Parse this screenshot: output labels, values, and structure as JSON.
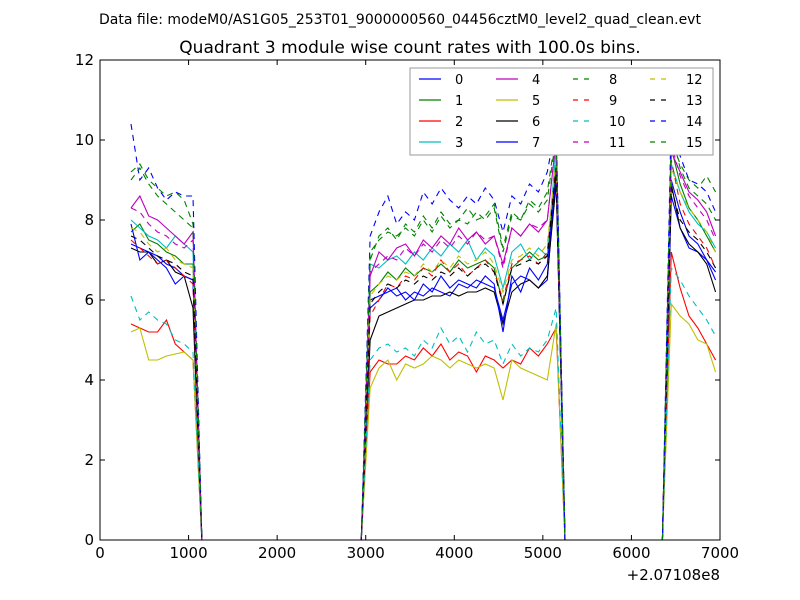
{
  "chart_data": {
    "type": "line",
    "suptitle": "Data file: modeM0/AS1G05_253T01_9000000560_04456cztM0_level2_quad_clean.evt",
    "title": "Quadrant 3 module wise count rates with 100.0s bins.",
    "xlabel": "",
    "ylabel": "",
    "offset_label": "+2.07108e8",
    "xlim": [
      0,
      7000
    ],
    "ylim": [
      0,
      12
    ],
    "xticks": [
      0,
      1000,
      2000,
      3000,
      4000,
      5000,
      6000,
      7000
    ],
    "yticks": [
      0,
      2,
      4,
      6,
      8,
      10,
      12
    ],
    "x": [
      350,
      450,
      550,
      650,
      750,
      850,
      950,
      1050,
      1150,
      1250,
      1350,
      1450,
      1550,
      1650,
      1750,
      1850,
      1950,
      2050,
      2150,
      2250,
      2350,
      2450,
      2550,
      2650,
      2750,
      2850,
      2950,
      3050,
      3150,
      3250,
      3350,
      3450,
      3550,
      3650,
      3750,
      3850,
      3950,
      4050,
      4150,
      4250,
      4350,
      4450,
      4550,
      4650,
      4750,
      4850,
      4950,
      5050,
      5150,
      5250,
      5350,
      5450,
      5550,
      5650,
      5750,
      5850,
      5950,
      6050,
      6150,
      6250,
      6350,
      6450,
      6550,
      6650,
      6750,
      6850,
      6950
    ],
    "active_segments": [
      [
        0,
        8
      ],
      [
        27,
        49
      ],
      [
        61,
        66
      ]
    ],
    "legend": {
      "location": "top-right",
      "columns": 4
    },
    "series": [
      {
        "name": "0",
        "color": "#0000ff",
        "style": "solid",
        "s1": [
          7.4,
          7.3,
          7.2,
          7.1,
          6.9,
          6.8,
          6.6,
          6.5
        ],
        "s2": [
          6.0,
          6.1,
          6.2,
          6.3,
          6.0,
          6.2,
          6.1,
          6.3,
          6.2,
          6.1,
          6.4,
          6.3,
          6.5,
          6.4,
          6.3,
          5.5,
          6.4,
          6.6,
          6.5,
          6.3,
          6.5,
          9.2
        ],
        "s3": [
          8.6,
          7.8,
          7.3,
          7.2,
          7.0,
          6.5
        ]
      },
      {
        "name": "1",
        "color": "#008000",
        "style": "solid",
        "s1": [
          7.7,
          7.9,
          7.5,
          7.4,
          7.2,
          7.1,
          6.9,
          6.9
        ],
        "s2": [
          6.2,
          6.4,
          6.7,
          6.5,
          6.8,
          6.6,
          6.8,
          6.7,
          6.9,
          6.7,
          7.0,
          6.8,
          6.9,
          7.0,
          6.8,
          5.9,
          6.8,
          7.0,
          7.2,
          7.0,
          7.1,
          9.4
        ],
        "s3": [
          9.8,
          8.9,
          8.3,
          8.0,
          7.6,
          7.2
        ]
      },
      {
        "name": "2",
        "color": "#ff0000",
        "style": "solid",
        "s1": [
          5.4,
          5.3,
          5.2,
          5.2,
          5.5,
          4.9,
          4.7,
          4.5
        ],
        "s2": [
          4.2,
          4.5,
          4.4,
          4.4,
          4.6,
          4.5,
          4.8,
          4.6,
          4.9,
          4.5,
          4.7,
          4.6,
          4.2,
          4.6,
          4.5,
          4.3,
          4.5,
          4.4,
          4.8,
          4.6,
          4.9,
          5.3
        ],
        "s3": [
          7.2,
          6.3,
          5.6,
          5.3,
          4.9,
          4.5
        ]
      },
      {
        "name": "3",
        "color": "#00bfbf",
        "style": "solid",
        "s1": [
          8.0,
          7.8,
          7.6,
          7.5,
          7.3,
          7.6,
          7.4,
          7.2
        ],
        "s2": [
          6.9,
          6.8,
          7.0,
          7.1,
          6.9,
          7.2,
          7.0,
          7.3,
          7.1,
          7.4,
          7.2,
          7.5,
          7.0,
          7.3,
          7.1,
          6.3,
          7.2,
          7.4,
          7.0,
          7.3,
          7.1,
          9.8
        ],
        "s3": [
          9.4,
          8.7,
          8.2,
          7.9,
          7.7,
          7.3
        ]
      },
      {
        "name": "4",
        "color": "#bf00bf",
        "style": "solid",
        "s1": [
          8.3,
          8.6,
          8.1,
          8.0,
          7.8,
          7.6,
          7.4,
          7.7
        ],
        "s2": [
          6.6,
          7.2,
          7.0,
          7.3,
          7.4,
          7.1,
          7.5,
          7.3,
          7.6,
          7.4,
          7.8,
          7.5,
          7.7,
          7.4,
          7.6,
          6.9,
          7.8,
          7.6,
          7.9,
          7.7,
          8.0,
          10.0
        ],
        "s3": [
          9.7,
          9.2,
          8.7,
          8.5,
          8.2,
          7.6
        ]
      },
      {
        "name": "5",
        "color": "#bfbf00",
        "style": "solid",
        "s1": [
          5.2,
          5.3,
          4.5,
          4.5,
          4.6,
          4.65,
          4.7,
          4.5
        ],
        "s2": [
          3.8,
          4.3,
          4.5,
          4.0,
          4.4,
          4.3,
          4.4,
          4.6,
          4.5,
          4.3,
          4.5,
          4.4,
          4.3,
          4.4,
          4.3,
          3.5,
          4.5,
          4.3,
          4.2,
          4.1,
          4.0,
          5.4
        ],
        "s3": [
          5.9,
          5.6,
          5.4,
          5.0,
          4.9,
          4.2
        ]
      },
      {
        "name": "6",
        "color": "#000000",
        "style": "solid",
        "s1": [
          7.3,
          7.2,
          7.2,
          6.9,
          7.0,
          6.7,
          6.6,
          5.8
        ],
        "s2": [
          5.0,
          5.6,
          5.7,
          5.8,
          5.9,
          6.0,
          6.0,
          6.1,
          6.1,
          6.2,
          6.1,
          6.2,
          6.2,
          6.3,
          6.2,
          5.4,
          6.2,
          6.4,
          6.5,
          6.3,
          6.6,
          8.9
        ],
        "s3": [
          8.9,
          7.8,
          7.4,
          7.2,
          6.9,
          6.2
        ]
      },
      {
        "name": "7",
        "color": "#0000ff",
        "style": "solid",
        "s1": [
          7.9,
          7.0,
          7.2,
          7.0,
          6.8,
          6.4,
          6.6,
          6.5
        ],
        "s2": [
          5.8,
          6.0,
          6.3,
          6.1,
          6.2,
          6.0,
          6.4,
          6.2,
          6.6,
          6.3,
          6.5,
          6.4,
          6.3,
          6.6,
          6.4,
          5.2,
          6.6,
          6.2,
          6.8,
          6.5,
          6.9,
          9.1
        ],
        "s3": [
          9.0,
          8.2,
          7.6,
          7.4,
          7.0,
          6.7
        ]
      },
      {
        "name": "8",
        "color": "#008000",
        "style": "dashed",
        "s1": [
          9.2,
          9.4,
          9.0,
          8.8,
          8.6,
          8.7,
          8.5,
          7.9
        ],
        "s2": [
          7.0,
          7.6,
          7.8,
          7.5,
          7.9,
          7.7,
          8.1,
          7.8,
          8.2,
          7.9,
          8.0,
          8.3,
          8.0,
          8.1,
          8.4,
          7.3,
          8.2,
          8.0,
          8.5,
          8.3,
          8.7,
          10.2
        ],
        "s3": [
          10.0,
          9.4,
          9.0,
          8.8,
          9.1,
          8.7
        ]
      },
      {
        "name": "9",
        "color": "#ff0000",
        "style": "dashed",
        "s1": [
          7.5,
          7.3,
          7.1,
          6.9,
          7.0,
          6.8,
          6.6,
          6.4
        ],
        "s2": [
          5.6,
          6.0,
          6.4,
          6.3,
          6.6,
          6.5,
          6.8,
          6.6,
          7.0,
          6.7,
          6.9,
          6.6,
          6.8,
          7.0,
          6.7,
          6.0,
          6.9,
          7.0,
          7.1,
          6.9,
          7.2,
          9.4
        ],
        "s3": [
          9.5,
          8.4,
          7.9,
          7.6,
          7.3,
          6.8
        ]
      },
      {
        "name": "10",
        "color": "#00bfbf",
        "style": "dashed",
        "s1": [
          6.1,
          5.5,
          5.7,
          5.5,
          5.4,
          5.0,
          4.9,
          4.7
        ],
        "s2": [
          4.5,
          4.8,
          4.9,
          4.7,
          4.8,
          4.6,
          5.0,
          4.8,
          5.3,
          4.9,
          5.1,
          4.7,
          5.2,
          4.9,
          5.0,
          4.4,
          4.9,
          4.6,
          4.8,
          4.7,
          5.0,
          5.8
        ],
        "s3": [
          6.8,
          6.5,
          6.1,
          5.8,
          5.5,
          5.1
        ]
      },
      {
        "name": "11",
        "color": "#bf00bf",
        "style": "dashed",
        "s1": [
          8.3,
          8.2,
          7.9,
          7.7,
          7.6,
          7.4,
          7.3,
          7.5
        ],
        "s2": [
          6.7,
          6.9,
          7.1,
          7.0,
          7.3,
          7.1,
          7.4,
          7.2,
          7.5,
          7.3,
          7.6,
          7.4,
          7.7,
          7.5,
          7.6,
          6.8,
          7.8,
          7.6,
          7.9,
          7.8,
          8.0,
          10.0
        ],
        "s3": [
          9.9,
          9.1,
          8.6,
          8.3,
          8.0,
          7.5
        ]
      },
      {
        "name": "12",
        "color": "#bfbf00",
        "style": "dashed",
        "s1": [
          7.8,
          7.7,
          7.4,
          7.2,
          7.3,
          7.0,
          6.9,
          6.8
        ],
        "s2": [
          6.1,
          6.4,
          6.6,
          6.5,
          6.7,
          6.6,
          6.9,
          6.7,
          7.0,
          6.8,
          7.1,
          6.9,
          7.0,
          7.2,
          6.9,
          6.2,
          7.0,
          7.1,
          7.3,
          7.1,
          7.4,
          9.5
        ],
        "s3": [
          9.3,
          8.7,
          8.3,
          8.0,
          7.7,
          7.2
        ]
      },
      {
        "name": "13",
        "color": "#000000",
        "style": "dashed",
        "s1": [
          7.6,
          7.5,
          7.3,
          7.1,
          7.0,
          6.9,
          6.7,
          6.6
        ],
        "s2": [
          5.9,
          6.2,
          6.4,
          6.3,
          6.5,
          6.4,
          6.6,
          6.5,
          6.7,
          6.6,
          6.8,
          6.6,
          6.8,
          6.9,
          6.7,
          5.9,
          6.8,
          6.9,
          7.0,
          6.9,
          7.1,
          9.3
        ],
        "s3": [
          8.8,
          8.0,
          7.7,
          7.5,
          7.2,
          6.8
        ]
      },
      {
        "name": "14",
        "color": "#0000ff",
        "style": "dashed",
        "s1": [
          10.4,
          9.0,
          9.3,
          8.8,
          8.5,
          8.7,
          8.6,
          8.6
        ],
        "s2": [
          7.6,
          8.2,
          8.6,
          7.9,
          8.2,
          8.0,
          8.7,
          8.4,
          8.8,
          8.5,
          8.3,
          8.6,
          8.4,
          8.8,
          8.5,
          7.7,
          8.6,
          8.4,
          8.9,
          8.7,
          9.2,
          10.4
        ],
        "s3": [
          10.7,
          9.6,
          9.0,
          8.9,
          8.7,
          8.2
        ]
      },
      {
        "name": "15",
        "color": "#008000",
        "style": "dashed",
        "s1": [
          9.0,
          9.3,
          8.9,
          8.6,
          8.4,
          8.2,
          8.0,
          7.8
        ],
        "s2": [
          7.2,
          7.5,
          7.7,
          7.6,
          7.8,
          7.6,
          8.0,
          7.7,
          8.1,
          7.8,
          8.0,
          7.9,
          8.2,
          8.0,
          8.3,
          7.2,
          8.1,
          8.0,
          8.4,
          8.2,
          8.5,
          10.1
        ],
        "s3": [
          10.2,
          9.3,
          8.8,
          8.6,
          8.4,
          8.0
        ]
      }
    ]
  }
}
